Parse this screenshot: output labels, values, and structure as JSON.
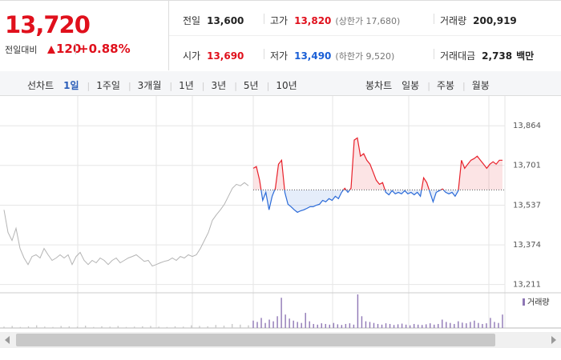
{
  "quote": {
    "price": "13,720",
    "change_label": "전일대비",
    "change": "120",
    "change_rate": "+0.88%"
  },
  "info": [
    [
      {
        "label": "전일",
        "value": "13,600"
      },
      {
        "label": "고가",
        "value": "13,820",
        "note": "(상한가 17,680)"
      },
      {
        "label": "거래량",
        "value": "200,919"
      }
    ],
    [
      {
        "label": "시가",
        "value": "13,690"
      },
      {
        "label": "저가",
        "value": "13,490",
        "note": "(하한가 9,520)"
      },
      {
        "label": "거래대금",
        "value": "2,738",
        "unit": "백만"
      }
    ]
  ],
  "line_tabs": {
    "label": "선차트",
    "items": [
      "1일",
      "1주일",
      "3개월",
      "1년",
      "3년",
      "5년",
      "10년"
    ],
    "selected": 0
  },
  "candle_tabs": {
    "label": "봉차트",
    "items": [
      "일봉",
      "주봉",
      "월봉"
    ]
  },
  "chart_data": {
    "type": "line",
    "ylim": [
      13180,
      13970
    ],
    "yticks": [
      {
        "value": 13211,
        "label": "13,211"
      },
      {
        "value": 13374,
        "label": "13,374"
      },
      {
        "value": 13537,
        "label": "13,537"
      },
      {
        "value": 13701,
        "label": "13,701"
      },
      {
        "value": 13864,
        "label": "13,864"
      }
    ],
    "grid": true,
    "baseline": 13600,
    "up_color": "#e8202a",
    "down_color": "#2a6ad8",
    "series": [
      {
        "color": "#b4b4b4",
        "values": [
          13518,
          13425,
          13392,
          13442,
          13359,
          13320,
          13293,
          13326,
          13333,
          13320,
          13359,
          13333,
          13310,
          13320,
          13333,
          13320,
          13333,
          13293,
          13326,
          13343,
          13310,
          13293,
          13310,
          13300,
          13320,
          13310,
          13293,
          13310,
          13320,
          13300,
          13310,
          13320,
          13326,
          13333,
          13320,
          13306,
          13310,
          13287,
          13293,
          13300,
          13306,
          13310,
          13320,
          13310,
          13326,
          13320,
          13333,
          13326,
          13333,
          13359,
          13392,
          13425,
          13475,
          13498,
          13518,
          13541,
          13574,
          13607,
          13623,
          13617,
          13630,
          13617
        ]
      },
      {
        "color": "today",
        "values": [
          13689,
          13696,
          13640,
          13557,
          13590,
          13518,
          13574,
          13607,
          13706,
          13722,
          13590,
          13541,
          13531,
          13518,
          13508,
          13514,
          13518,
          13524,
          13531,
          13531,
          13537,
          13541,
          13557,
          13551,
          13564,
          13557,
          13574,
          13564,
          13590,
          13607,
          13590,
          13607,
          13805,
          13814,
          13739,
          13749,
          13722,
          13706,
          13673,
          13640,
          13623,
          13630,
          13590,
          13580,
          13597,
          13584,
          13590,
          13584,
          13597,
          13584,
          13590,
          13580,
          13590,
          13574,
          13650,
          13630,
          13590,
          13551,
          13590,
          13597,
          13604,
          13590,
          13584,
          13590,
          13574,
          13597,
          13722,
          13689,
          13706,
          13722,
          13729,
          13739,
          13722,
          13706,
          13689,
          13706,
          13716,
          13706,
          13722,
          13722
        ]
      }
    ],
    "volume": {
      "label": "거래량",
      "ylim": [
        0,
        100
      ],
      "colors": [
        "#c8c8c8",
        "#8f77b5"
      ],
      "series": [
        [
          4,
          6,
          3,
          5,
          8,
          4,
          3,
          6,
          5,
          4,
          7,
          3,
          5,
          4,
          6,
          3,
          4,
          5,
          6,
          4,
          3,
          5,
          4,
          8,
          6,
          5,
          9,
          7,
          12,
          10,
          8
        ],
        [
          22,
          18,
          30,
          15,
          25,
          20,
          35,
          90,
          40,
          28,
          22,
          18,
          15,
          45,
          20,
          12,
          10,
          14,
          12,
          10,
          15,
          11,
          9,
          12,
          14,
          10,
          100,
          35,
          20,
          18,
          15,
          12,
          10,
          14,
          12,
          9,
          11,
          13,
          10,
          8,
          12,
          10,
          9,
          11,
          14,
          10,
          12,
          25,
          18,
          15,
          12,
          20,
          16,
          14,
          18,
          22,
          15,
          12,
          14,
          30,
          18,
          15,
          40
        ]
      ]
    }
  }
}
